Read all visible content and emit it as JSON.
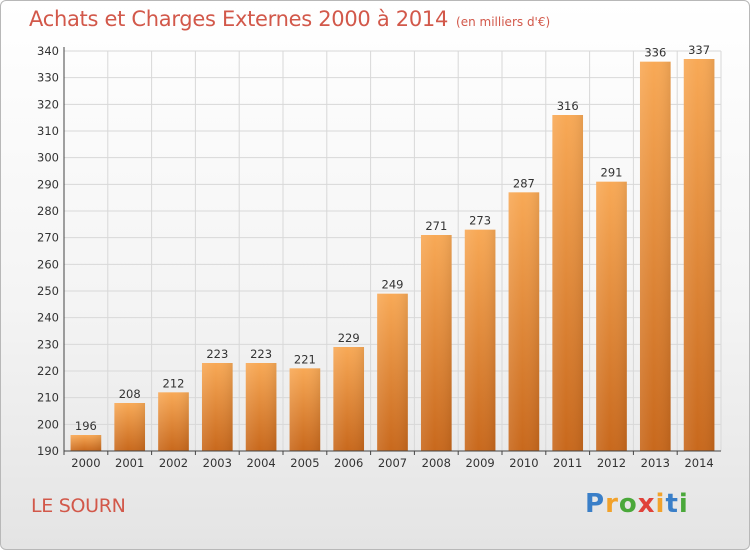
{
  "title": "Achats et Charges Externes 2000 à 2014",
  "subtitle": "(en milliers d'€)",
  "commune": "LE SOURN",
  "logo": {
    "letters": [
      "P",
      "r",
      "o",
      "x",
      "i",
      "t",
      "i"
    ],
    "colors": [
      "#3a7fc8",
      "#f2a22a",
      "#4aa83a",
      "#e0423a",
      "#f2a22a",
      "#3a7fc8",
      "#4aa83a"
    ]
  },
  "colors": {
    "bar_top": "#f8a956",
    "bar_bottom": "#c8681c",
    "title": "#d2584a",
    "grid": "#d8d8d8"
  },
  "chart_data": {
    "type": "bar",
    "title": "Achats et Charges Externes 2000 à 2014",
    "subtitle": "(en milliers d'€)",
    "xlabel": "",
    "ylabel": "",
    "categories": [
      "2000",
      "2001",
      "2002",
      "2003",
      "2004",
      "2005",
      "2006",
      "2007",
      "2008",
      "2009",
      "2010",
      "2011",
      "2012",
      "2013",
      "2014"
    ],
    "values": [
      196,
      208,
      212,
      223,
      223,
      221,
      229,
      249,
      271,
      273,
      287,
      316,
      291,
      336,
      337
    ],
    "ylim": [
      190,
      340
    ],
    "yticks": [
      190,
      200,
      210,
      220,
      230,
      240,
      250,
      260,
      270,
      280,
      290,
      300,
      310,
      320,
      330,
      340
    ],
    "grid": true,
    "legend": "none"
  }
}
